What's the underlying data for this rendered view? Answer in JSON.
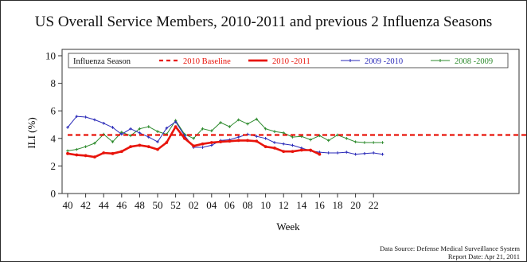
{
  "chart_data": {
    "type": "line",
    "title": "US Overall Service Members, 2010-2011 and previous 2 Influenza Seasons",
    "xlabel": "Week",
    "ylabel": "ILI (%)",
    "ylim": [
      0,
      10
    ],
    "y_ticks": [
      "0",
      "2",
      "4",
      "6",
      "8",
      "10"
    ],
    "x_ticks": [
      "40",
      "42",
      "44",
      "46",
      "48",
      "50",
      "52",
      "02",
      "04",
      "06",
      "08",
      "10",
      "12",
      "14",
      "16",
      "18",
      "20",
      "22"
    ],
    "legend_title": "Influenza Season",
    "legend_position": "top",
    "grid": false,
    "x_index": [
      0,
      1,
      2,
      3,
      4,
      5,
      6,
      7,
      8,
      9,
      10,
      11,
      12,
      13,
      14,
      15,
      16,
      17,
      18,
      19,
      20,
      21,
      22,
      23,
      24,
      25,
      26,
      27,
      28,
      29,
      30,
      31,
      32,
      33,
      34,
      35,
      36,
      37,
      38,
      39,
      40,
      41,
      42,
      43,
      44,
      45,
      46,
      47,
      48,
      49,
      50,
      51,
      52,
      53,
      54,
      55
    ],
    "series": [
      {
        "name": "2010 Baseline",
        "style": "dashed",
        "color": "#e8140b",
        "values": [
          4.25,
          4.25,
          4.25,
          4.25,
          4.25,
          4.25,
          4.25,
          4.25,
          4.25,
          4.25,
          4.25,
          4.25,
          4.25,
          4.25,
          4.25,
          4.25,
          4.25,
          4.25,
          4.25,
          4.25,
          4.25,
          4.25,
          4.25,
          4.25,
          4.25,
          4.25,
          4.25,
          4.25,
          4.25,
          4.25,
          4.25,
          4.25,
          4.25,
          4.25,
          4.25,
          4.25,
          4.25,
          4.25,
          4.25,
          4.25,
          4.25,
          4.25,
          4.25,
          4.25,
          4.25,
          4.25,
          4.25,
          4.25,
          4.25,
          4.25,
          4.25,
          4.25,
          4.25,
          4.25,
          4.25,
          4.25
        ]
      },
      {
        "name": "2010 -2011",
        "style": "bold",
        "color": "#e8140b",
        "values": [
          2.9,
          2.8,
          2.75,
          2.65,
          2.95,
          2.9,
          3.05,
          3.4,
          3.5,
          3.4,
          3.2,
          3.7,
          4.85,
          4.0,
          3.45,
          3.6,
          3.7,
          3.75,
          3.8,
          3.85,
          3.85,
          3.8,
          3.4,
          3.3,
          3.05,
          3.05,
          3.15,
          3.15,
          2.85,
          null,
          null,
          null,
          null,
          null,
          null,
          null,
          null,
          null,
          null,
          null,
          null,
          null,
          null,
          null,
          null,
          null,
          null,
          null,
          null,
          null,
          null,
          null,
          null,
          null,
          null,
          null
        ]
      },
      {
        "name": "2009 -2010",
        "style": "markers",
        "color": "#2a2ab8",
        "values": [
          4.8,
          5.6,
          5.55,
          5.35,
          5.1,
          4.8,
          4.3,
          4.7,
          4.4,
          4.1,
          3.75,
          4.75,
          5.2,
          4.2,
          3.35,
          3.35,
          3.5,
          3.85,
          3.9,
          4.1,
          4.3,
          4.15,
          4.0,
          3.7,
          3.6,
          3.5,
          3.3,
          3.1,
          3.0,
          2.95,
          2.95,
          3.0,
          2.85,
          2.9,
          2.95,
          2.85,
          null,
          null,
          null,
          null,
          null,
          null,
          null,
          null,
          null,
          null,
          null,
          null,
          null,
          null,
          null,
          null,
          null,
          null,
          null,
          null
        ]
      },
      {
        "name": "2008 -2009",
        "style": "markers",
        "color": "#2e8b2e",
        "values": [
          3.1,
          3.2,
          3.4,
          3.65,
          4.3,
          3.75,
          4.45,
          4.2,
          4.7,
          4.85,
          4.5,
          4.3,
          5.3,
          4.3,
          4.0,
          4.7,
          4.55,
          5.15,
          4.85,
          5.35,
          5.05,
          5.4,
          4.7,
          4.5,
          4.4,
          4.1,
          4.15,
          3.9,
          4.2,
          3.85,
          4.25,
          4.0,
          3.75,
          3.7,
          3.7,
          3.7,
          null,
          null,
          null,
          null,
          null,
          null,
          null,
          null,
          null,
          null,
          null,
          null,
          null,
          null,
          null,
          null,
          null,
          null,
          null,
          null
        ]
      }
    ]
  },
  "footer": {
    "source": "Data Source: Defense Medical Surveillance System",
    "report_date": "Report Date: Apr 21, 2011"
  }
}
